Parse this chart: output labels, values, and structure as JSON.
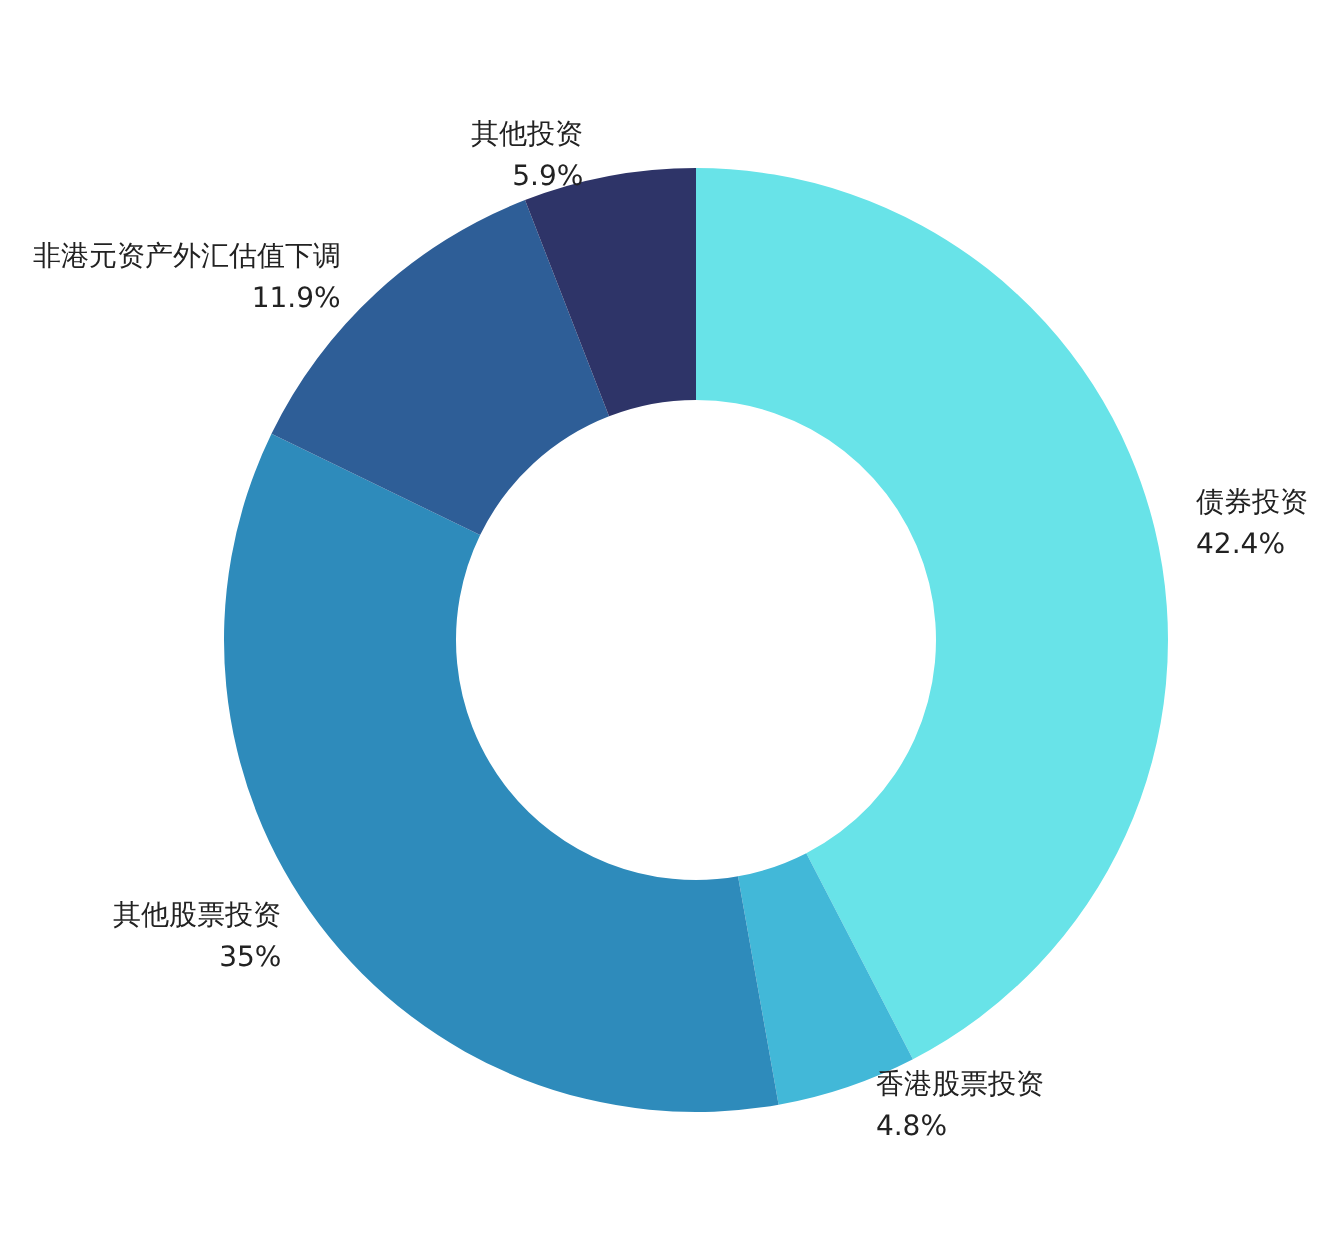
{
  "chart_data": {
    "type": "donut",
    "categories": [
      "债券投资",
      "香港股票投资",
      "其他股票投资",
      "非港元资产外汇估值下调",
      "其他投资"
    ],
    "values": [
      42.4,
      4.8,
      35,
      11.9,
      5.9
    ],
    "value_labels": [
      "42.4%",
      "4.8%",
      "35%",
      "11.9%",
      "5.9%"
    ],
    "colors": [
      "#68e3e8",
      "#42b8d8",
      "#2e8bbb",
      "#2e5e97",
      "#2e3468"
    ],
    "legend": false
  }
}
